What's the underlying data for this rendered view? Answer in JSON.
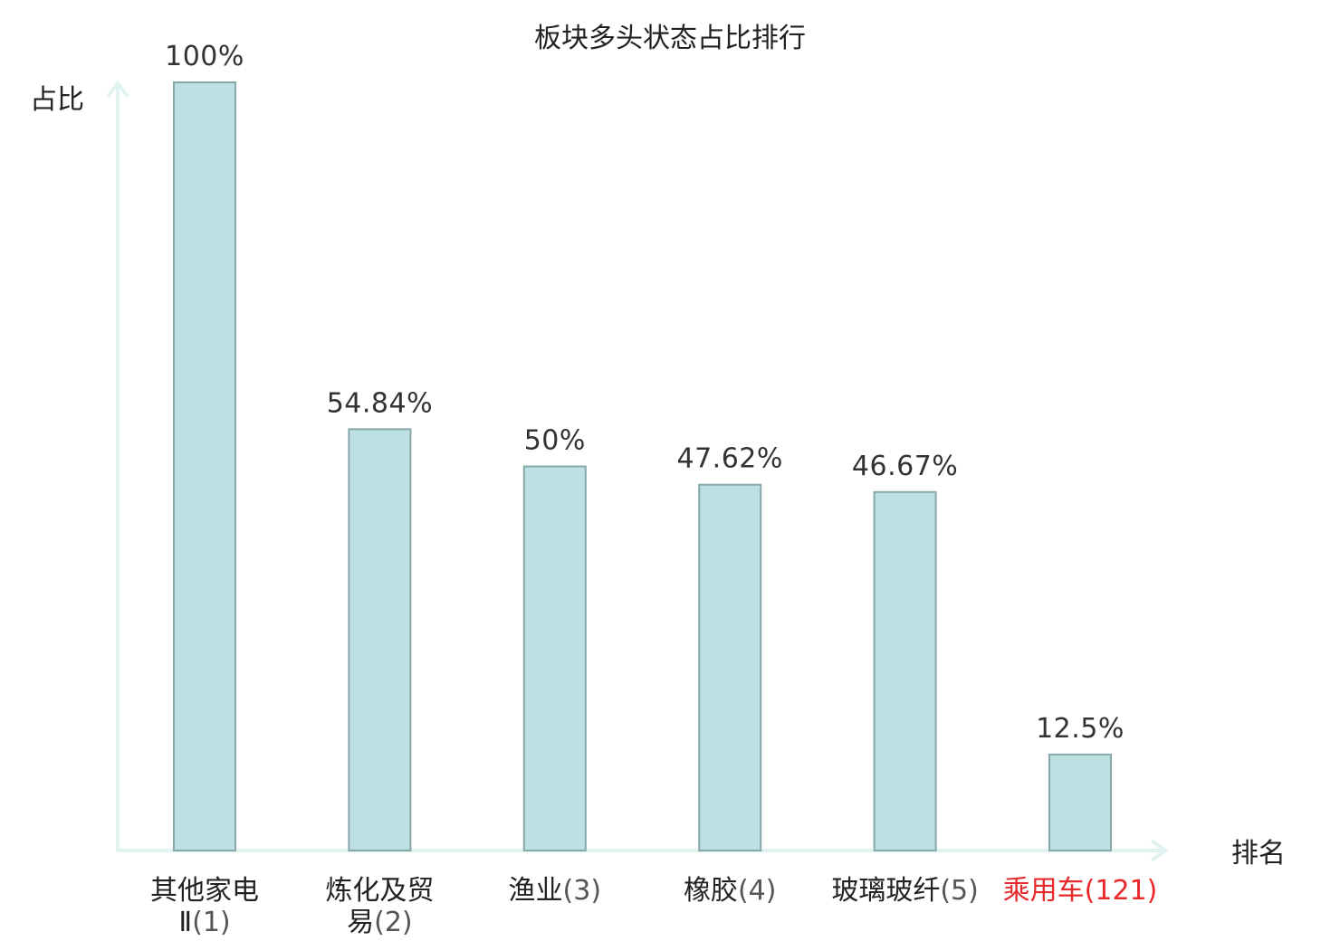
{
  "chart_data": {
    "type": "bar",
    "title": "板块多头状态占比排行",
    "ylabel": "占比",
    "xlabel": "排名",
    "ylim": [
      0,
      100
    ],
    "grid": false,
    "categories": [
      {
        "name": "其他家电Ⅱ",
        "rank": "(1)",
        "highlight": false
      },
      {
        "name": "炼化及贸易",
        "rank": "(2)",
        "highlight": false
      },
      {
        "name": "渔业",
        "rank": "(3)",
        "highlight": false
      },
      {
        "name": "橡胶",
        "rank": "(4)",
        "highlight": false
      },
      {
        "name": "玻璃玻纤",
        "rank": "(5)",
        "highlight": false
      },
      {
        "name": "乘用车",
        "rank": "(121)",
        "highlight": true
      }
    ],
    "values": [
      100,
      54.84,
      50,
      47.62,
      46.67,
      12.5
    ],
    "value_labels": [
      "100%",
      "54.84%",
      "50%",
      "47.62%",
      "46.67%",
      "12.5%"
    ],
    "colors": {
      "bar_fill": "#bde0e3",
      "bar_stroke": "#86a8ab",
      "axis": "#e0f3f0",
      "highlight": "#e8282b"
    }
  }
}
